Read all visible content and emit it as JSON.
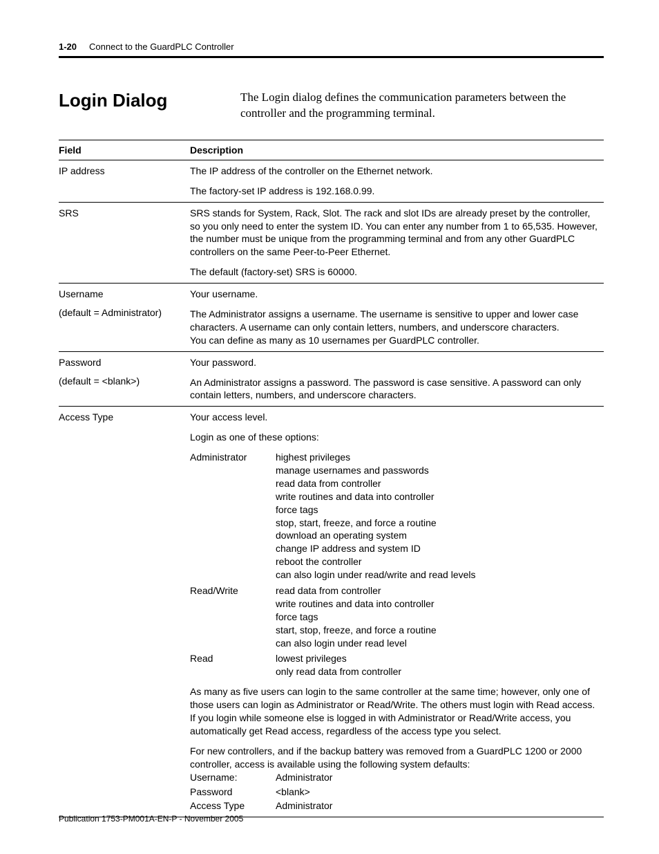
{
  "header": {
    "page_number": "1-20",
    "chapter_title": "Connect to the GuardPLC Controller"
  },
  "section": {
    "title": "Login Dialog",
    "intro": "The Login dialog defines the communication parameters between the controller and the programming terminal."
  },
  "table": {
    "head_field": "Field",
    "head_desc": "Description",
    "rows": {
      "ip": {
        "field": "IP address",
        "p1": "The IP address of the controller on the Ethernet network.",
        "p2": "The factory-set IP address is 192.168.0.99."
      },
      "srs": {
        "field": "SRS",
        "p1": "SRS stands for System, Rack, Slot. The rack and slot IDs are already preset by the controller, so you only need to enter the system ID. You can enter any number from 1 to 65,535. However, the number must be unique from the programming terminal and from any other GuardPLC controllers on the same Peer-to-Peer Ethernet.",
        "p2": "The default (factory-set) SRS is 60000."
      },
      "username": {
        "field_l1": "Username",
        "field_l2": "(default = Administrator)",
        "p1": "Your username.",
        "p2": "The Administrator assigns a username. The username is sensitive to upper and lower case characters. A username can only contain letters, numbers, and underscore characters.",
        "p3": "You can define as many as 10 usernames per GuardPLC controller."
      },
      "password": {
        "field_l1": "Password",
        "field_l2": "(default = <blank>)",
        "p1": "Your password.",
        "p2": "An Administrator assigns a password. The password is case sensitive. A password can only contain letters, numbers, and underscore characters."
      },
      "access": {
        "field": "Access Type",
        "p1": "Your access level.",
        "p2": "Login as one of these options:",
        "roles": {
          "admin": {
            "name": "Administrator",
            "lines": "highest privileges\nmanage usernames and passwords\nread data from controller\nwrite routines and data into controller\nforce tags\nstop, start, freeze, and force a routine\ndownload an operating system\nchange IP address and system ID\nreboot the controller\ncan also login under read/write and read levels"
          },
          "rw": {
            "name": "Read/Write",
            "lines": "read data from controller\nwrite routines and data into controller\nforce tags\nstart, stop, freeze, and force a routine\ncan also login under read level"
          },
          "r": {
            "name": "Read",
            "lines": "lowest privileges\nonly read data from controller"
          }
        },
        "p3": "As many as five users can login to the same controller at the same time; however, only one of those users can login as Administrator or Read/Write. The others must login with Read access. If you login while someone else is logged in with Administrator or Read/Write access, you automatically get Read access, regardless of the access type you select.",
        "p4": "For new controllers, and if the backup battery was removed from a GuardPLC 1200 or 2000 controller, access is available using the following system defaults:",
        "defaults": {
          "k1": "Username:",
          "v1": "Administrator",
          "k2": "Password",
          "v2": "<blank>",
          "k3": "Access Type",
          "v3": "Administrator"
        }
      }
    }
  },
  "footer": {
    "text": "Publication 1753-PM001A-EN-P - November 2005"
  }
}
